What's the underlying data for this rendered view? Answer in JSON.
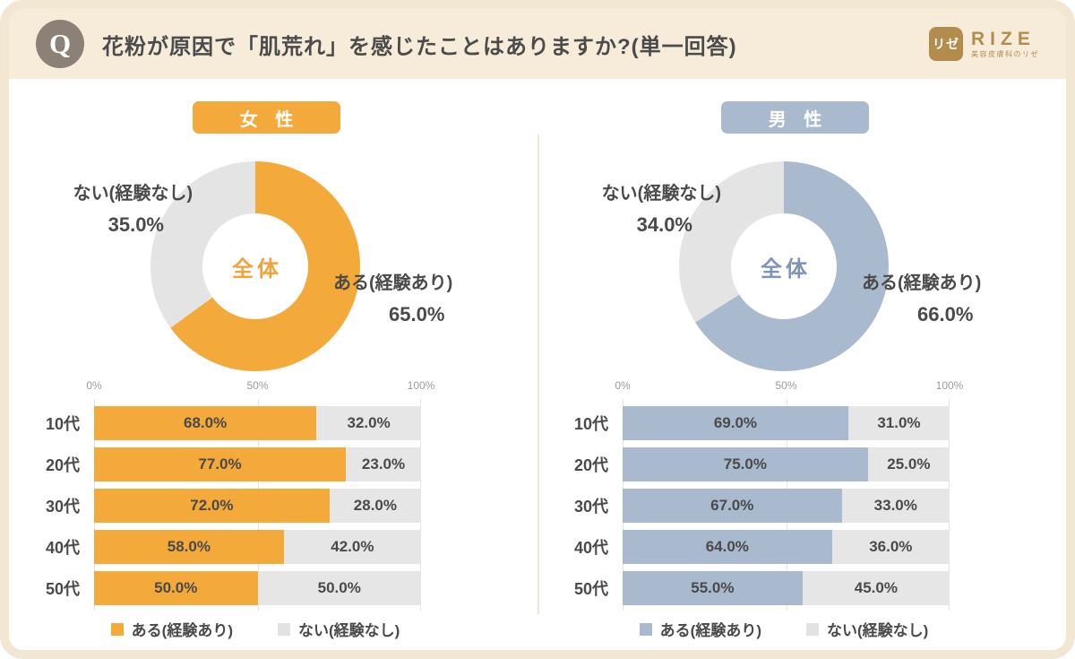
{
  "header": {
    "q_mark": "Q",
    "title": "花粉が原因で「肌荒れ」を感じたことはありますか?(単一回答)",
    "logo": {
      "square_text": "リゼ",
      "brand": "RIZE",
      "tagline": "美容皮膚科のリゼ"
    }
  },
  "colors": {
    "female_accent": "#F4A93B",
    "male_accent": "#A9B9CE",
    "neutral": "#E4E4E4",
    "frame_beige": "#F1E7D2",
    "header_beige": "#F6ECD9",
    "gold": "#B28C4C",
    "text_dark": "#4A4A4A",
    "q_circle_gray": "#8B8177"
  },
  "chart_data": [
    {
      "type": "pie",
      "title": "女性 全体",
      "donut": true,
      "center_label": "全体",
      "labels": [
        "ある(経験あり)",
        "ない(経験なし)"
      ],
      "values": [
        65.0,
        35.0
      ],
      "unit": "%",
      "colors": [
        "#F4A93B",
        "#E4E4E4"
      ],
      "start_angle": "top, clockwise"
    },
    {
      "type": "pie",
      "title": "男性 全体",
      "donut": true,
      "center_label": "全体",
      "labels": [
        "ある(経験あり)",
        "ない(経験なし)"
      ],
      "values": [
        66.0,
        34.0
      ],
      "unit": "%",
      "colors": [
        "#A9B9CE",
        "#E4E4E4"
      ],
      "start_angle": "top, clockwise"
    },
    {
      "type": "bar",
      "title": "女性 年代別",
      "orientation": "horizontal",
      "stacked": true,
      "categories": [
        "10代",
        "20代",
        "30代",
        "40代",
        "50代"
      ],
      "series": [
        {
          "name": "ある(経験あり)",
          "values": [
            68.0,
            77.0,
            72.0,
            58.0,
            50.0
          ]
        },
        {
          "name": "ない(経験なし)",
          "values": [
            32.0,
            23.0,
            28.0,
            42.0,
            50.0
          ]
        }
      ],
      "xlim": [
        0,
        100
      ],
      "tick_labels": [
        "0%",
        "50%",
        "100%"
      ],
      "grid": true,
      "legend_position": "bottom"
    },
    {
      "type": "bar",
      "title": "男性 年代別",
      "orientation": "horizontal",
      "stacked": true,
      "categories": [
        "10代",
        "20代",
        "30代",
        "40代",
        "50代"
      ],
      "series": [
        {
          "name": "ある(経験あり)",
          "values": [
            69.0,
            75.0,
            67.0,
            64.0,
            55.0
          ]
        },
        {
          "name": "ない(経験なし)",
          "values": [
            31.0,
            25.0,
            33.0,
            36.0,
            45.0
          ]
        }
      ],
      "xlim": [
        0,
        100
      ],
      "tick_labels": [
        "0%",
        "50%",
        "100%"
      ],
      "grid": true,
      "legend_position": "bottom"
    }
  ],
  "panels": [
    {
      "id": "female",
      "badge": "女 性",
      "accent": "#F4A93B",
      "center_color": "#F0A23C",
      "donut": {
        "center_label": "全体",
        "yes_label": "ある(経験あり)",
        "yes_text": "65.0%",
        "yes_pct": 65,
        "no_label": "ない(経験なし)",
        "no_text": "35.0%",
        "no_pct": 35
      },
      "bars": {
        "axis": [
          "0%",
          "50%",
          "100%"
        ],
        "rows": [
          {
            "label": "10代",
            "yes": 68,
            "no": 32,
            "yes_text": "68.0%",
            "no_text": "32.0%"
          },
          {
            "label": "20代",
            "yes": 77,
            "no": 23,
            "yes_text": "77.0%",
            "no_text": "23.0%"
          },
          {
            "label": "30代",
            "yes": 72,
            "no": 28,
            "yes_text": "72.0%",
            "no_text": "28.0%"
          },
          {
            "label": "40代",
            "yes": 58,
            "no": 42,
            "yes_text": "58.0%",
            "no_text": "42.0%"
          },
          {
            "label": "50代",
            "yes": 50,
            "no": 50,
            "yes_text": "50.0%",
            "no_text": "50.0%"
          }
        ],
        "legend_yes": "ある(経験あり)",
        "legend_no": "ない(経験なし)"
      }
    },
    {
      "id": "male",
      "badge": "男 性",
      "accent": "#A9B9CE",
      "center_color": "#7D94B6",
      "donut": {
        "center_label": "全体",
        "yes_label": "ある(経験あり)",
        "yes_text": "66.0%",
        "yes_pct": 66,
        "no_label": "ない(経験なし)",
        "no_text": "34.0%",
        "no_pct": 34
      },
      "bars": {
        "axis": [
          "0%",
          "50%",
          "100%"
        ],
        "rows": [
          {
            "label": "10代",
            "yes": 69,
            "no": 31,
            "yes_text": "69.0%",
            "no_text": "31.0%"
          },
          {
            "label": "20代",
            "yes": 75,
            "no": 25,
            "yes_text": "75.0%",
            "no_text": "25.0%"
          },
          {
            "label": "30代",
            "yes": 67,
            "no": 33,
            "yes_text": "67.0%",
            "no_text": "33.0%"
          },
          {
            "label": "40代",
            "yes": 64,
            "no": 36,
            "yes_text": "64.0%",
            "no_text": "36.0%"
          },
          {
            "label": "50代",
            "yes": 55,
            "no": 45,
            "yes_text": "55.0%",
            "no_text": "45.0%"
          }
        ],
        "legend_yes": "ある(経験あり)",
        "legend_no": "ない(経験なし)"
      }
    }
  ]
}
